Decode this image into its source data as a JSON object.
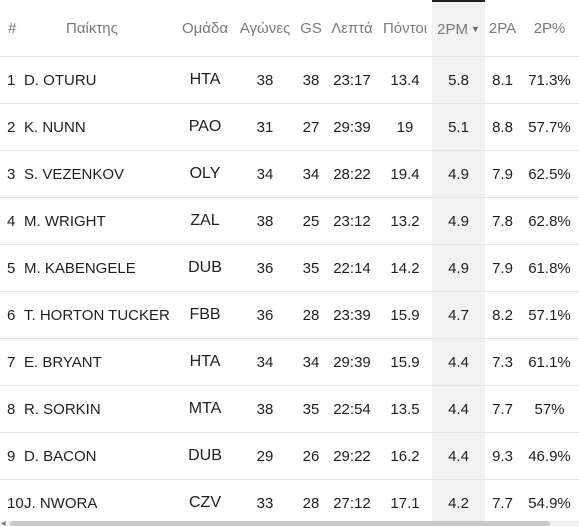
{
  "headers": {
    "rank": "#",
    "player": "Παίκτης",
    "team": "Ομάδα",
    "games": "Αγώνες",
    "gs": "GS",
    "minutes": "Λεπτά",
    "points": "Πόντοι",
    "twopm": "2PM",
    "twopa": "2PA",
    "twopp": "2P%"
  },
  "sort": {
    "column": "2PM",
    "direction": "descending",
    "arrow_icon": "caret-down-icon"
  },
  "rows": [
    {
      "rank": "1",
      "player": "D. OTURU",
      "team": "HTA",
      "games": "38",
      "gs": "38",
      "minutes": "23:17",
      "points": "13.4",
      "twopm": "5.8",
      "twopa": "8.1",
      "twopp": "71.3%"
    },
    {
      "rank": "2",
      "player": "K. NUNN",
      "team": "PAO",
      "games": "31",
      "gs": "27",
      "minutes": "29:39",
      "points": "19",
      "twopm": "5.1",
      "twopa": "8.8",
      "twopp": "57.7%"
    },
    {
      "rank": "3",
      "player": "S. VEZENKOV",
      "team": "OLY",
      "games": "34",
      "gs": "34",
      "minutes": "28:22",
      "points": "19.4",
      "twopm": "4.9",
      "twopa": "7.9",
      "twopp": "62.5%"
    },
    {
      "rank": "4",
      "player": "M. WRIGHT",
      "team": "ZAL",
      "games": "38",
      "gs": "25",
      "minutes": "23:12",
      "points": "13.2",
      "twopm": "4.9",
      "twopa": "7.8",
      "twopp": "62.8%"
    },
    {
      "rank": "5",
      "player": "M. KABENGELE",
      "team": "DUB",
      "games": "36",
      "gs": "35",
      "minutes": "22:14",
      "points": "14.2",
      "twopm": "4.9",
      "twopa": "7.9",
      "twopp": "61.8%"
    },
    {
      "rank": "6",
      "player": "T. HORTON TUCKER",
      "team": "FBB",
      "games": "36",
      "gs": "28",
      "minutes": "23:39",
      "points": "15.9",
      "twopm": "4.7",
      "twopa": "8.2",
      "twopp": "57.1%"
    },
    {
      "rank": "7",
      "player": "E. BRYANT",
      "team": "HTA",
      "games": "34",
      "gs": "34",
      "minutes": "29:39",
      "points": "15.9",
      "twopm": "4.4",
      "twopa": "7.3",
      "twopp": "61.1%"
    },
    {
      "rank": "8",
      "player": "R. SORKIN",
      "team": "MTA",
      "games": "38",
      "gs": "35",
      "minutes": "22:54",
      "points": "13.5",
      "twopm": "4.4",
      "twopa": "7.7",
      "twopp": "57%"
    },
    {
      "rank": "9",
      "player": "D. BACON",
      "team": "DUB",
      "games": "29",
      "gs": "26",
      "minutes": "29:22",
      "points": "16.2",
      "twopm": "4.4",
      "twopa": "9.3",
      "twopp": "46.9%"
    },
    {
      "rank": "10",
      "player": "J. NWORA",
      "team": "CZV",
      "games": "33",
      "gs": "28",
      "minutes": "27:12",
      "points": "17.1",
      "twopm": "4.2",
      "twopa": "7.7",
      "twopp": "54.9%"
    }
  ]
}
